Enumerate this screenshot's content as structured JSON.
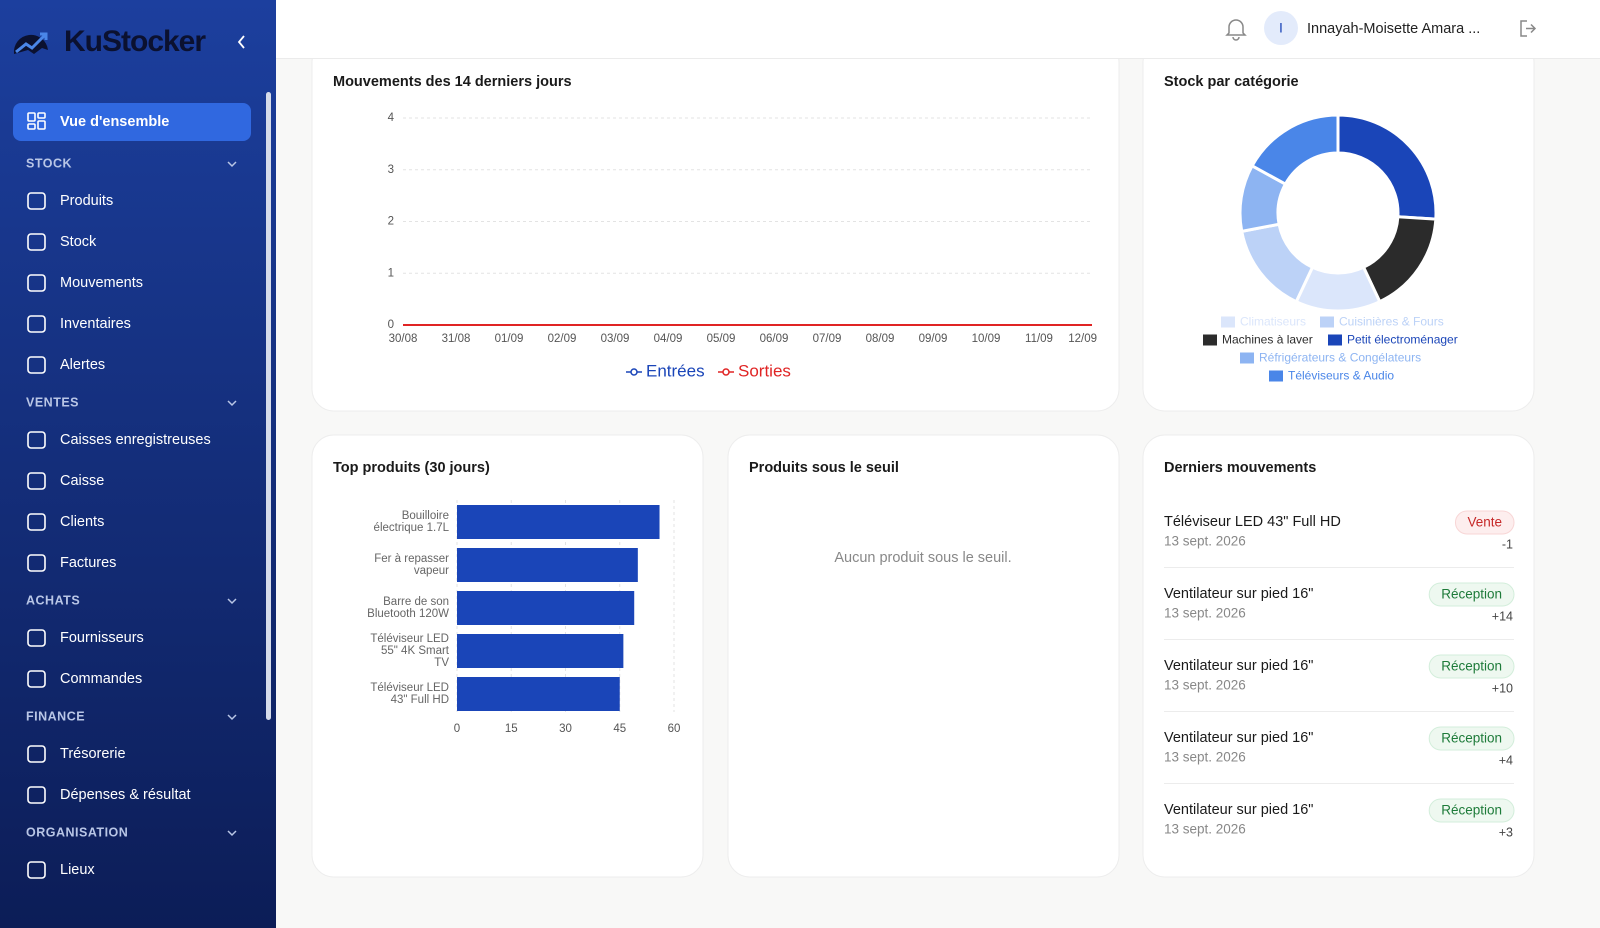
{
  "sidebar": {
    "brand": "KuStocker",
    "active_item": "Vue d'ensemble",
    "sections": [
      {
        "title": "STOCK",
        "items": [
          "Produits",
          "Stock",
          "Mouvements",
          "Inventaires",
          "Alertes"
        ]
      },
      {
        "title": "VENTES",
        "items": [
          "Caisses enregistreuses",
          "Caisse",
          "Clients",
          "Factures"
        ]
      },
      {
        "title": "ACHATS",
        "items": [
          "Fournisseurs",
          "Commandes"
        ]
      },
      {
        "title": "FINANCE",
        "items": [
          "Trésorerie",
          "Dépenses & résultat"
        ]
      },
      {
        "title": "ORGANISATION",
        "items": [
          "Lieux"
        ]
      }
    ]
  },
  "header": {
    "user_initial": "I",
    "user_name": "Innayah-Moisette Amara ..."
  },
  "chart_data": [
    {
      "type": "line",
      "title": "Mouvements des 14 derniers jours",
      "categories": [
        "30/08",
        "31/08",
        "01/09",
        "02/09",
        "03/09",
        "04/09",
        "05/09",
        "06/09",
        "07/09",
        "08/09",
        "09/09",
        "10/09",
        "11/09",
        "12/09"
      ],
      "series": [
        {
          "name": "Entrées",
          "color": "#1a45b8",
          "values": [
            0,
            0,
            0,
            0,
            0,
            0,
            0,
            0,
            0,
            0,
            0,
            0,
            0,
            0
          ]
        },
        {
          "name": "Sorties",
          "color": "#e02424",
          "values": [
            0,
            0,
            0,
            0,
            0,
            0,
            0,
            0,
            0,
            0,
            0,
            0,
            0,
            0
          ]
        }
      ],
      "ylim": [
        0,
        4
      ],
      "yticks": [
        0,
        1,
        2,
        3,
        4
      ],
      "grid": true,
      "legend": "bottom"
    },
    {
      "type": "donut",
      "title": "Stock par catégorie",
      "categories": [
        "Petit électroménager",
        "Machines à laver",
        "Climatiseurs",
        "Cuisinières & Fours",
        "Réfrigérateurs & Congélateurs",
        "Téléviseurs & Audio"
      ],
      "values": [
        26,
        17,
        14,
        15,
        11,
        17
      ],
      "colors": [
        "#1a45b8",
        "#2b2b2b",
        "#dbe6fb",
        "#bcd2f7",
        "#8db4f2",
        "#4a86e8"
      ],
      "legend": "bottom"
    },
    {
      "type": "hbar",
      "title": "Top produits (30 jours)",
      "categories": [
        "Bouilloire électrique 1.7L",
        "Fer à repasser vapeur",
        "Barre de son Bluetooth 120W",
        "Téléviseur LED 55\" 4K Smart TV",
        "Téléviseur LED 43\" Full HD"
      ],
      "values": [
        56,
        50,
        49,
        46,
        45
      ],
      "color": "#1a45b8",
      "xlim": [
        0,
        60
      ],
      "xticks": [
        0,
        15,
        30,
        45,
        60
      ],
      "grid": true
    }
  ],
  "stock_alert": {
    "title": "Produits sous le seuil",
    "empty_message": "Aucun produit sous le seuil."
  },
  "recent_movements": {
    "title": "Derniers mouvements",
    "items": [
      {
        "product": "Téléviseur LED 43\" Full HD",
        "date": "13 sept. 2026",
        "type": "Vente",
        "quantity": "-1"
      },
      {
        "product": "Ventilateur sur pied 16\"",
        "date": "13 sept. 2026",
        "type": "Réception",
        "quantity": "+14"
      },
      {
        "product": "Ventilateur sur pied 16\"",
        "date": "13 sept. 2026",
        "type": "Réception",
        "quantity": "+10"
      },
      {
        "product": "Ventilateur sur pied 16\"",
        "date": "13 sept. 2026",
        "type": "Réception",
        "quantity": "+4"
      },
      {
        "product": "Ventilateur sur pied 16\"",
        "date": "13 sept. 2026",
        "type": "Réception",
        "quantity": "+3"
      }
    ]
  }
}
